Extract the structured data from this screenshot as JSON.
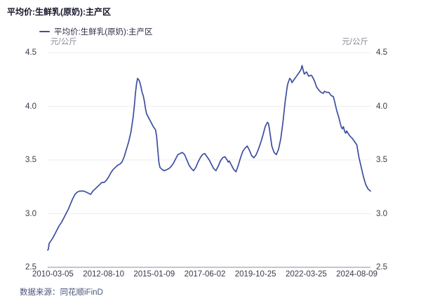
{
  "page": {
    "title": "平均价:生鲜乳(原奶):主产区"
  },
  "legend": {
    "label": "平均价:生鲜乳(原奶):主产区"
  },
  "units": {
    "left": "元/公斤",
    "right": "元/公斤"
  },
  "footer": {
    "source": "数据来源：同花顺iFinD"
  },
  "colors": {
    "line": "#3D4E9F",
    "grid": "#EDEDF2",
    "axis_line": "#ADB3C0",
    "title_text": "#15152A",
    "tick_text": "#3A3A4E",
    "unit_text": "#8C8C99",
    "source_text": "#4A547A"
  },
  "chart_data": {
    "type": "line",
    "title": "平均价:生鲜乳(原奶):主产区",
    "ylabel": "元/公斤",
    "legend_position": "top",
    "grid": true,
    "x_tick_labels": [
      "2010-03-05",
      "2012-08-10",
      "2015-01-09",
      "2017-06-02",
      "2019-10-25",
      "2022-03-25",
      "2024-08-09"
    ],
    "y_tick_labels": [
      "4.5",
      "4.0",
      "3.5",
      "3.0",
      "2.5"
    ],
    "y_tick_values": [
      4.5,
      4.0,
      3.5,
      3.0,
      2.5
    ],
    "x_range": [
      2010.18,
      2024.61
    ],
    "y_range": [
      2.5,
      4.5
    ],
    "series": [
      {
        "name": "平均价:生鲜乳(原奶):主产区",
        "color": "#3D4E9F",
        "points": [
          [
            2010.18,
            2.66
          ],
          [
            2010.21,
            2.67
          ],
          [
            2010.24,
            2.72
          ],
          [
            2010.3,
            2.74
          ],
          [
            2010.4,
            2.77
          ],
          [
            2010.5,
            2.81
          ],
          [
            2010.6,
            2.85
          ],
          [
            2010.7,
            2.89
          ],
          [
            2010.8,
            2.92
          ],
          [
            2010.9,
            2.96
          ],
          [
            2011.0,
            3.0
          ],
          [
            2011.1,
            3.04
          ],
          [
            2011.2,
            3.09
          ],
          [
            2011.3,
            3.14
          ],
          [
            2011.4,
            3.18
          ],
          [
            2011.5,
            3.2
          ],
          [
            2011.6,
            3.21
          ],
          [
            2011.7,
            3.21
          ],
          [
            2011.8,
            3.21
          ],
          [
            2011.9,
            3.2
          ],
          [
            2012.0,
            3.19
          ],
          [
            2012.1,
            3.18
          ],
          [
            2012.2,
            3.21
          ],
          [
            2012.3,
            3.23
          ],
          [
            2012.4,
            3.25
          ],
          [
            2012.5,
            3.27
          ],
          [
            2012.6,
            3.29
          ],
          [
            2012.7,
            3.29
          ],
          [
            2012.8,
            3.31
          ],
          [
            2012.9,
            3.34
          ],
          [
            2013.0,
            3.38
          ],
          [
            2013.1,
            3.41
          ],
          [
            2013.2,
            3.43
          ],
          [
            2013.3,
            3.45
          ],
          [
            2013.4,
            3.46
          ],
          [
            2013.5,
            3.48
          ],
          [
            2013.6,
            3.53
          ],
          [
            2013.7,
            3.6
          ],
          [
            2013.8,
            3.67
          ],
          [
            2013.9,
            3.76
          ],
          [
            2014.0,
            3.9
          ],
          [
            2014.05,
            4.0
          ],
          [
            2014.1,
            4.12
          ],
          [
            2014.15,
            4.21
          ],
          [
            2014.2,
            4.26
          ],
          [
            2014.27,
            4.24
          ],
          [
            2014.33,
            4.2
          ],
          [
            2014.4,
            4.13
          ],
          [
            2014.45,
            4.1
          ],
          [
            2014.5,
            4.05
          ],
          [
            2014.55,
            3.98
          ],
          [
            2014.6,
            3.93
          ],
          [
            2014.7,
            3.89
          ],
          [
            2014.8,
            3.85
          ],
          [
            2014.9,
            3.81
          ],
          [
            2015.0,
            3.78
          ],
          [
            2015.05,
            3.72
          ],
          [
            2015.1,
            3.6
          ],
          [
            2015.15,
            3.48
          ],
          [
            2015.2,
            3.43
          ],
          [
            2015.3,
            3.41
          ],
          [
            2015.4,
            3.4
          ],
          [
            2015.5,
            3.41
          ],
          [
            2015.6,
            3.42
          ],
          [
            2015.7,
            3.44
          ],
          [
            2015.8,
            3.47
          ],
          [
            2015.9,
            3.51
          ],
          [
            2016.0,
            3.55
          ],
          [
            2016.1,
            3.56
          ],
          [
            2016.2,
            3.57
          ],
          [
            2016.3,
            3.55
          ],
          [
            2016.4,
            3.5
          ],
          [
            2016.5,
            3.45
          ],
          [
            2016.6,
            3.42
          ],
          [
            2016.7,
            3.4
          ],
          [
            2016.8,
            3.43
          ],
          [
            2016.9,
            3.48
          ],
          [
            2017.0,
            3.52
          ],
          [
            2017.1,
            3.55
          ],
          [
            2017.2,
            3.56
          ],
          [
            2017.3,
            3.53
          ],
          [
            2017.4,
            3.5
          ],
          [
            2017.5,
            3.46
          ],
          [
            2017.6,
            3.42
          ],
          [
            2017.7,
            3.4
          ],
          [
            2017.8,
            3.44
          ],
          [
            2017.9,
            3.49
          ],
          [
            2018.0,
            3.52
          ],
          [
            2018.1,
            3.53
          ],
          [
            2018.2,
            3.5
          ],
          [
            2018.25,
            3.48
          ],
          [
            2018.3,
            3.49
          ],
          [
            2018.4,
            3.45
          ],
          [
            2018.5,
            3.41
          ],
          [
            2018.6,
            3.39
          ],
          [
            2018.7,
            3.45
          ],
          [
            2018.8,
            3.52
          ],
          [
            2018.9,
            3.58
          ],
          [
            2019.0,
            3.61
          ],
          [
            2019.1,
            3.63
          ],
          [
            2019.2,
            3.59
          ],
          [
            2019.3,
            3.54
          ],
          [
            2019.4,
            3.52
          ],
          [
            2019.5,
            3.55
          ],
          [
            2019.6,
            3.6
          ],
          [
            2019.7,
            3.66
          ],
          [
            2019.8,
            3.73
          ],
          [
            2019.9,
            3.81
          ],
          [
            2020.0,
            3.85
          ],
          [
            2020.05,
            3.84
          ],
          [
            2020.1,
            3.78
          ],
          [
            2020.2,
            3.63
          ],
          [
            2020.3,
            3.57
          ],
          [
            2020.4,
            3.55
          ],
          [
            2020.5,
            3.6
          ],
          [
            2020.6,
            3.7
          ],
          [
            2020.7,
            3.86
          ],
          [
            2020.8,
            4.05
          ],
          [
            2020.9,
            4.2
          ],
          [
            2021.0,
            4.26
          ],
          [
            2021.05,
            4.25
          ],
          [
            2021.1,
            4.22
          ],
          [
            2021.2,
            4.25
          ],
          [
            2021.3,
            4.28
          ],
          [
            2021.4,
            4.31
          ],
          [
            2021.5,
            4.34
          ],
          [
            2021.55,
            4.38
          ],
          [
            2021.6,
            4.34
          ],
          [
            2021.65,
            4.3
          ],
          [
            2021.75,
            4.32
          ],
          [
            2021.85,
            4.28
          ],
          [
            2021.95,
            4.29
          ],
          [
            2022.0,
            4.28
          ],
          [
            2022.1,
            4.24
          ],
          [
            2022.2,
            4.18
          ],
          [
            2022.3,
            4.15
          ],
          [
            2022.4,
            4.13
          ],
          [
            2022.5,
            4.12
          ],
          [
            2022.55,
            4.14
          ],
          [
            2022.65,
            4.13
          ],
          [
            2022.75,
            4.13
          ],
          [
            2022.85,
            4.1
          ],
          [
            2022.95,
            4.09
          ],
          [
            2023.0,
            4.05
          ],
          [
            2023.1,
            3.96
          ],
          [
            2023.2,
            3.89
          ],
          [
            2023.3,
            3.81
          ],
          [
            2023.35,
            3.79
          ],
          [
            2023.4,
            3.81
          ],
          [
            2023.45,
            3.77
          ],
          [
            2023.5,
            3.75
          ],
          [
            2023.55,
            3.77
          ],
          [
            2023.6,
            3.75
          ],
          [
            2023.7,
            3.72
          ],
          [
            2023.8,
            3.7
          ],
          [
            2023.9,
            3.67
          ],
          [
            2024.0,
            3.64
          ],
          [
            2024.05,
            3.58
          ],
          [
            2024.1,
            3.52
          ],
          [
            2024.2,
            3.43
          ],
          [
            2024.3,
            3.34
          ],
          [
            2024.4,
            3.27
          ],
          [
            2024.5,
            3.23
          ],
          [
            2024.61,
            3.21
          ]
        ]
      }
    ]
  }
}
